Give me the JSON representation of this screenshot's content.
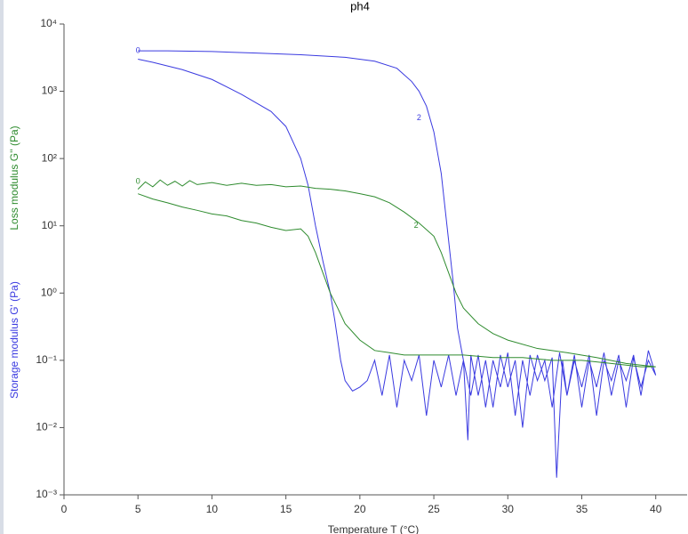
{
  "chart_data": {
    "type": "line",
    "title": "ph4",
    "xlabel": "Temperature T (°C)",
    "ylabels": [
      {
        "text": "Loss modulus G'' (Pa)",
        "color": "#2e8b2e"
      },
      {
        "text": "Storage modulus G' (Pa)",
        "color": "#3a3ae0"
      }
    ],
    "yscale": "log",
    "xlim": [
      0,
      42
    ],
    "ylim": [
      0.001,
      10000
    ],
    "xticks": [
      0,
      5,
      10,
      15,
      20,
      25,
      30,
      35,
      40
    ],
    "yticks": [
      {
        "value": 0.001,
        "label": "10⁻³"
      },
      {
        "value": 0.01,
        "label": "10⁻²"
      },
      {
        "value": 0.1,
        "label": "10⁻¹"
      },
      {
        "value": 1,
        "label": "10⁰"
      },
      {
        "value": 10,
        "label": "10¹"
      },
      {
        "value": 100,
        "label": "10²"
      },
      {
        "value": 1000,
        "label": "10³"
      },
      {
        "value": 10000,
        "label": "10⁴"
      }
    ],
    "series": [
      {
        "name": "Storage modulus G'",
        "color": "#3a3ae0",
        "x": [
          5,
          7,
          10,
          13,
          16,
          19,
          21,
          22.5,
          23.5,
          24,
          24.5,
          25,
          25.5,
          26,
          26.3,
          26.6,
          27,
          27.5,
          28,
          28.5,
          29,
          29.5,
          30,
          30.5,
          31,
          31.5,
          32,
          32.5,
          33,
          33.3,
          33.7,
          34,
          34.5,
          35,
          35.5,
          36,
          36.5,
          37,
          37.5,
          38,
          38.5,
          39,
          39.5,
          40,
          39.5,
          39,
          38.5,
          38,
          37.5,
          37,
          36.5,
          36,
          35.5,
          35,
          34.5,
          34,
          33.5,
          33,
          32.5,
          32,
          31.5,
          31,
          30.5,
          30,
          29.5,
          29,
          28.5,
          28,
          27.5,
          27.3,
          27,
          26.5,
          26,
          25.5,
          25,
          24.5,
          24,
          23.5,
          23,
          22.5,
          22,
          21.5,
          21,
          20.5,
          20,
          19.5,
          19,
          18.7,
          18.3,
          18,
          17.5,
          17,
          16.5,
          16,
          15,
          14,
          12,
          10,
          8,
          6,
          5
        ],
        "values": [
          4000,
          4000,
          3900,
          3700,
          3500,
          3200,
          2800,
          2200,
          1400,
          1000,
          600,
          250,
          60,
          6,
          1.5,
          0.3,
          0.1,
          0.03,
          0.12,
          0.02,
          0.1,
          0.04,
          0.13,
          0.015,
          0.1,
          0.03,
          0.12,
          0.05,
          0.11,
          0.0018,
          0.1,
          0.03,
          0.12,
          0.02,
          0.1,
          0.04,
          0.13,
          0.03,
          0.1,
          0.05,
          0.12,
          0.03,
          0.14,
          0.06,
          0.1,
          0.04,
          0.11,
          0.02,
          0.12,
          0.05,
          0.1,
          0.015,
          0.12,
          0.04,
          0.1,
          0.03,
          0.13,
          0.02,
          0.1,
          0.05,
          0.12,
          0.01,
          0.1,
          0.04,
          0.12,
          0.02,
          0.1,
          0.03,
          0.12,
          0.0065,
          0.1,
          0.03,
          0.12,
          0.04,
          0.1,
          0.015,
          0.12,
          0.05,
          0.1,
          0.02,
          0.12,
          0.03,
          0.1,
          0.05,
          0.04,
          0.035,
          0.05,
          0.1,
          0.4,
          1,
          3,
          10,
          40,
          100,
          300,
          500,
          900,
          1500,
          2100,
          2700,
          3000
        ]
      },
      {
        "name": "Loss modulus G''",
        "color": "#2e8b2e",
        "x": [
          5,
          5.5,
          6,
          6.5,
          7,
          7.5,
          8,
          8.5,
          9,
          10,
          11,
          12,
          13,
          14,
          15,
          16,
          17,
          18,
          19,
          20,
          21,
          22,
          23,
          24,
          25,
          25.5,
          26,
          26.5,
          27,
          28,
          29,
          30,
          32,
          34,
          36,
          38,
          40,
          39,
          37,
          35,
          33,
          31,
          29,
          27,
          25,
          23,
          22,
          21,
          20,
          19,
          18.5,
          18,
          17.5,
          17,
          16.5,
          16,
          15,
          14,
          13,
          12,
          11,
          10,
          9,
          8,
          7,
          6,
          5
        ],
        "values": [
          35,
          45,
          38,
          48,
          40,
          46,
          39,
          47,
          41,
          44,
          40,
          43,
          40,
          41,
          38,
          39,
          36,
          35,
          33,
          30,
          27,
          22,
          16,
          11,
          7,
          4,
          2,
          1,
          0.6,
          0.35,
          0.25,
          0.2,
          0.15,
          0.13,
          0.11,
          0.09,
          0.08,
          0.08,
          0.09,
          0.1,
          0.1,
          0.11,
          0.11,
          0.12,
          0.12,
          0.12,
          0.13,
          0.14,
          0.2,
          0.35,
          0.6,
          1,
          2,
          4,
          7,
          9,
          8.5,
          9.5,
          11,
          12,
          14,
          15,
          17,
          19,
          22,
          25,
          30
        ]
      }
    ],
    "annotations": [
      {
        "text": "2",
        "x": 24,
        "y": 400,
        "color": "#3a3ae0"
      },
      {
        "text": "0",
        "x": 5,
        "y": 4000,
        "color": "#3a3ae0"
      },
      {
        "text": "2",
        "x": 23.8,
        "y": 10,
        "color": "#2e8b2e"
      },
      {
        "text": "0",
        "x": 5,
        "y": 45,
        "color": "#2e8b2e"
      }
    ]
  }
}
